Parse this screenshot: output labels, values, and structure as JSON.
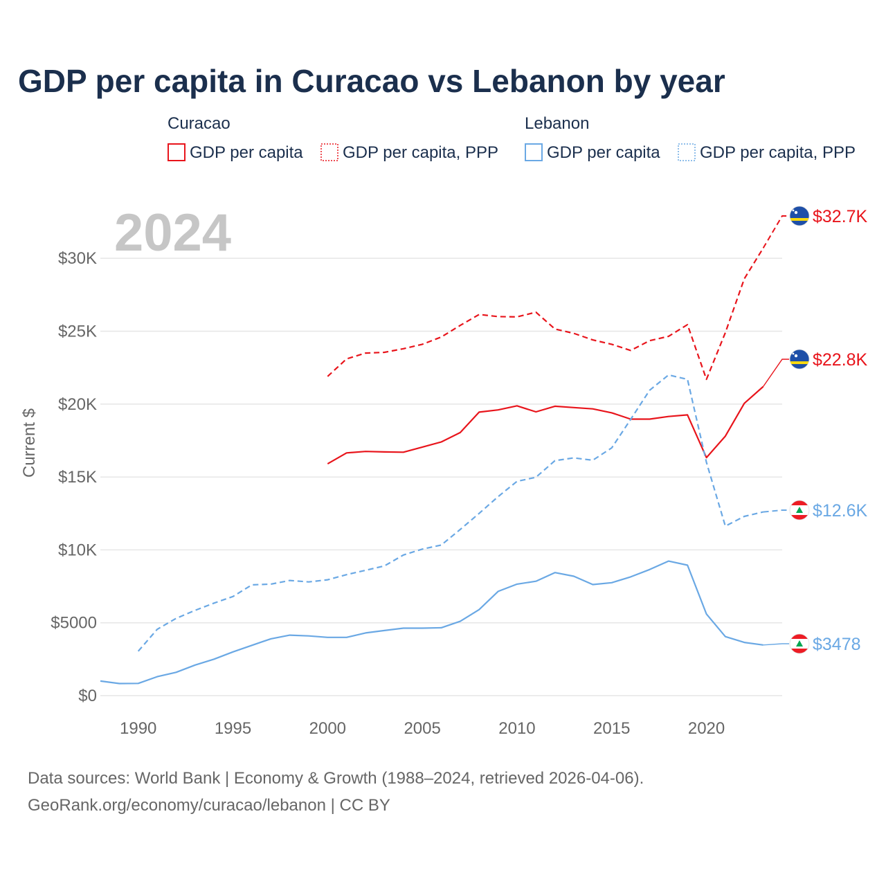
{
  "chart_data": {
    "type": "line",
    "title": "GDP per capita in Curacao vs Lebanon by year",
    "year_label": "2024",
    "ylabel": "Current $",
    "xlim": [
      1988,
      2024
    ],
    "ylim": [
      0,
      33000
    ],
    "x_ticks": [
      {
        "value": 1990,
        "label": "1990"
      },
      {
        "value": 1995,
        "label": "1995"
      },
      {
        "value": 2000,
        "label": "2000"
      },
      {
        "value": 2005,
        "label": "2005"
      },
      {
        "value": 2010,
        "label": "2010"
      },
      {
        "value": 2015,
        "label": "2015"
      },
      {
        "value": 2020,
        "label": "2020"
      }
    ],
    "y_ticks": [
      {
        "value": 0,
        "label": "$0"
      },
      {
        "value": 5000,
        "label": "$5000"
      },
      {
        "value": 10000,
        "label": "$10K"
      },
      {
        "value": 15000,
        "label": "$15K"
      },
      {
        "value": 20000,
        "label": "$20K"
      },
      {
        "value": 25000,
        "label": "$25K"
      },
      {
        "value": 30000,
        "label": "$30K"
      }
    ],
    "legend_groups": [
      {
        "country": "Curacao",
        "items": [
          {
            "label": "GDP per capita",
            "color": "#e8141b",
            "style": "solid"
          },
          {
            "label": "GDP per capita, PPP",
            "color": "#e8141b",
            "style": "dotted"
          }
        ]
      },
      {
        "country": "Lebanon",
        "items": [
          {
            "label": "GDP per capita",
            "color": "#6aa8e4",
            "style": "solid"
          },
          {
            "label": "GDP per capita, PPP",
            "color": "#6aa8e4",
            "style": "dotted"
          }
        ]
      }
    ],
    "series": [
      {
        "name": "Curacao GDP per capita, PPP",
        "country": "Curacao",
        "color": "#e8141b",
        "dashed": true,
        "end_label": "$32.7K",
        "flag": "curacao",
        "x": [
          2000,
          2001,
          2002,
          2003,
          2004,
          2005,
          2006,
          2007,
          2008,
          2009,
          2010,
          2011,
          2012,
          2013,
          2014,
          2015,
          2016,
          2017,
          2018,
          2019,
          2020,
          2021,
          2022,
          2023,
          2024
        ],
        "values": [
          21900,
          23100,
          23500,
          23550,
          23800,
          24100,
          24600,
          25400,
          26150,
          26000,
          25980,
          26300,
          25150,
          24850,
          24400,
          24100,
          23680,
          24350,
          24650,
          25450,
          21700,
          24900,
          28600,
          30700,
          32700
        ]
      },
      {
        "name": "Curacao GDP per capita",
        "country": "Curacao",
        "color": "#e8141b",
        "dashed": false,
        "end_label": "$22.8K",
        "flag": "curacao",
        "x": [
          2000,
          2001,
          2002,
          2003,
          2004,
          2005,
          2006,
          2007,
          2008,
          2009,
          2010,
          2011,
          2012,
          2013,
          2014,
          2015,
          2016,
          2017,
          2018,
          2019,
          2020,
          2021,
          2022,
          2023,
          2024
        ],
        "values": [
          15900,
          16650,
          16750,
          16720,
          16700,
          17050,
          17400,
          18050,
          19450,
          19600,
          19880,
          19470,
          19850,
          19760,
          19670,
          19400,
          18970,
          18970,
          19150,
          19260,
          16330,
          17800,
          20050,
          21200,
          22800
        ]
      },
      {
        "name": "Lebanon GDP per capita, PPP",
        "country": "Lebanon",
        "color": "#6aa8e4",
        "dashed": true,
        "end_label": "$12.6K",
        "flag": "lebanon",
        "x": [
          1990,
          1991,
          1992,
          1993,
          1994,
          1995,
          1996,
          1997,
          1998,
          1999,
          2000,
          2001,
          2002,
          2003,
          2004,
          2005,
          2006,
          2007,
          2008,
          2009,
          2010,
          2011,
          2012,
          2013,
          2014,
          2015,
          2016,
          2017,
          2018,
          2019,
          2020,
          2021,
          2022,
          2023,
          2024
        ],
        "values": [
          3050,
          4550,
          5300,
          5850,
          6350,
          6800,
          7600,
          7650,
          7900,
          7800,
          7950,
          8300,
          8600,
          8900,
          9650,
          10050,
          10330,
          11400,
          12500,
          13650,
          14700,
          14980,
          16120,
          16310,
          16150,
          17000,
          18950,
          20950,
          22000,
          21700,
          16000,
          11630,
          12300,
          12600,
          12600
        ]
      },
      {
        "name": "Lebanon GDP per capita",
        "country": "Lebanon",
        "color": "#6aa8e4",
        "dashed": false,
        "end_label": "$3478",
        "flag": "lebanon",
        "x": [
          1988,
          1989,
          1990,
          1991,
          1992,
          1993,
          1994,
          1995,
          1996,
          1997,
          1998,
          1999,
          2000,
          2001,
          2002,
          2003,
          2004,
          2005,
          2006,
          2007,
          2008,
          2009,
          2010,
          2011,
          2012,
          2013,
          2014,
          2015,
          2016,
          2017,
          2018,
          2019,
          2020,
          2021,
          2022,
          2023,
          2024
        ],
        "values": [
          1000,
          830,
          840,
          1300,
          1600,
          2100,
          2500,
          3000,
          3450,
          3900,
          4150,
          4100,
          4000,
          4000,
          4300,
          4470,
          4630,
          4630,
          4660,
          5100,
          5900,
          7150,
          7650,
          7850,
          8440,
          8190,
          7620,
          7750,
          8150,
          8650,
          9230,
          8950,
          5600,
          4050,
          3650,
          3478,
          3478
        ]
      }
    ]
  },
  "sources": {
    "line1": "Data sources: World Bank | Economy & Growth (1988–2024, retrieved 2026-04-06).",
    "line2": "GeoRank.org/economy/curacao/lebanon | CC BY"
  }
}
